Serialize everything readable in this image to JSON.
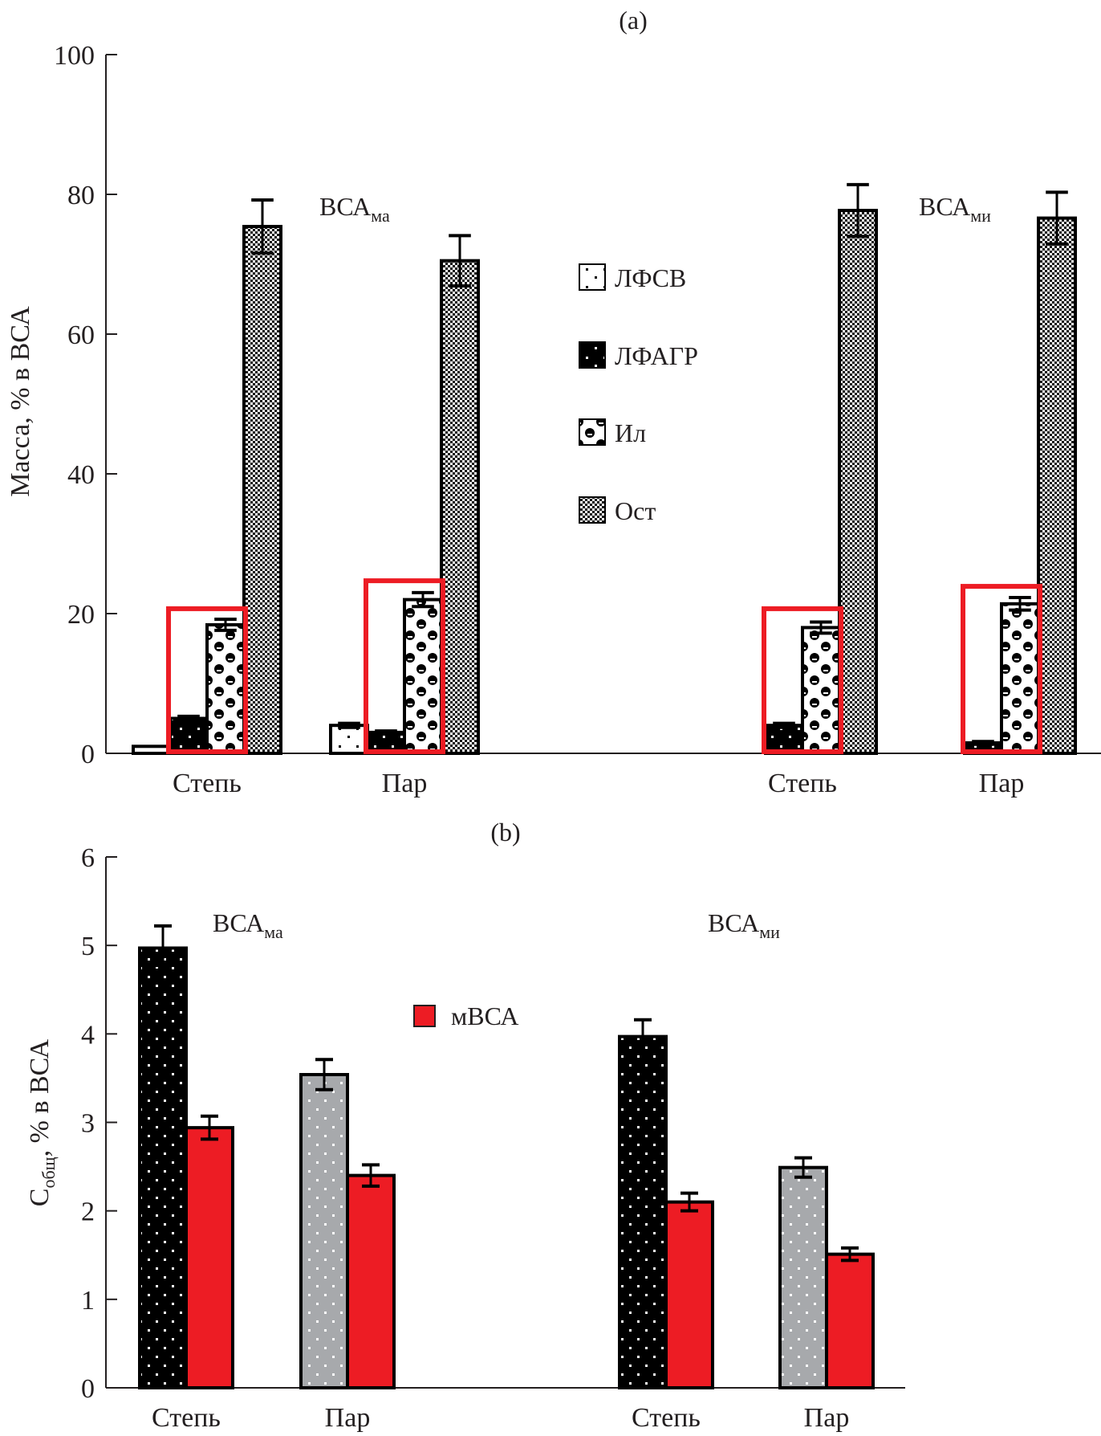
{
  "chart_data": [
    {
      "panel": "(a)",
      "type": "bar",
      "title": "(a)",
      "ylabel": "Масса, % в ВСА",
      "xlabel": "",
      "ylim": [
        0,
        100
      ],
      "yticks": [
        0,
        20,
        40,
        60,
        80,
        100
      ],
      "grid": false,
      "legend_position": "center",
      "groups": [
        {
          "label": "ВСА",
          "label_sub": "ма",
          "categories": [
            "Степь",
            "Пар"
          ]
        },
        {
          "label": "ВСА",
          "label_sub": "ми",
          "categories": [
            "Степь",
            "Пар"
          ]
        }
      ],
      "series": [
        {
          "name": "ЛФСВ",
          "pattern": "sparse-dots-white",
          "values": [
            1.0,
            4.0,
            0,
            0
          ],
          "errors": [
            0,
            0.3,
            0,
            0
          ]
        },
        {
          "name": "ЛФАГР",
          "pattern": "sparse-dots-black",
          "values": [
            5.0,
            3.0,
            4.0,
            1.5
          ],
          "errors": [
            0.3,
            0.2,
            0.3,
            0.2
          ]
        },
        {
          "name": "Ил",
          "pattern": "circles",
          "values": [
            18.4,
            22.0,
            18.0,
            21.4
          ],
          "errors": [
            0.8,
            1.0,
            0.8,
            0.9
          ]
        },
        {
          "name": "Ост",
          "pattern": "fine-checker",
          "values": [
            75.4,
            70.5,
            77.7,
            76.6
          ],
          "errors": [
            3.8,
            3.6,
            3.7,
            3.7
          ]
        }
      ],
      "highlight_boxes": [
        {
          "category_index": 0,
          "series": [
            "ЛФАГР",
            "Ил"
          ],
          "top": 20.7,
          "color": "#ed1c24"
        },
        {
          "category_index": 1,
          "series": [
            "ЛФАГР",
            "Ил"
          ],
          "top": 24.7,
          "color": "#ed1c24"
        },
        {
          "category_index": 2,
          "series": [
            "ЛФАГР",
            "Ил"
          ],
          "top": 20.7,
          "color": "#ed1c24"
        },
        {
          "category_index": 3,
          "series": [
            "ЛФАГР",
            "Ил"
          ],
          "top": 23.9,
          "color": "#ed1c24"
        }
      ]
    },
    {
      "panel": "(b)",
      "type": "bar",
      "title": "(b)",
      "ylabel": "С",
      "ylabel_sub": "общ",
      "ylabel_rest": ", % в ВСА",
      "xlabel": "",
      "ylim": [
        0,
        6
      ],
      "yticks": [
        0,
        1,
        2,
        3,
        4,
        5,
        6
      ],
      "grid": false,
      "legend_position": "center",
      "groups": [
        {
          "label": "ВСА",
          "label_sub": "ма",
          "categories": [
            "Степь",
            "Пар"
          ]
        },
        {
          "label": "ВСА",
          "label_sub": "ми",
          "categories": [
            "Степь",
            "Пар"
          ]
        }
      ],
      "series": [
        {
          "name": "ВСА",
          "colors": [
            "#000000",
            "#a7a9ac",
            "#000000",
            "#a7a9ac"
          ],
          "values": [
            4.97,
            3.54,
            3.97,
            2.49
          ],
          "errors": [
            0.25,
            0.17,
            0.19,
            0.11
          ],
          "in_legend": false
        },
        {
          "name": "мВСА",
          "color": "#ed1c24",
          "values": [
            2.94,
            2.4,
            2.1,
            1.51
          ],
          "errors": [
            0.13,
            0.12,
            0.1,
            0.07
          ],
          "in_legend": true
        }
      ]
    }
  ]
}
